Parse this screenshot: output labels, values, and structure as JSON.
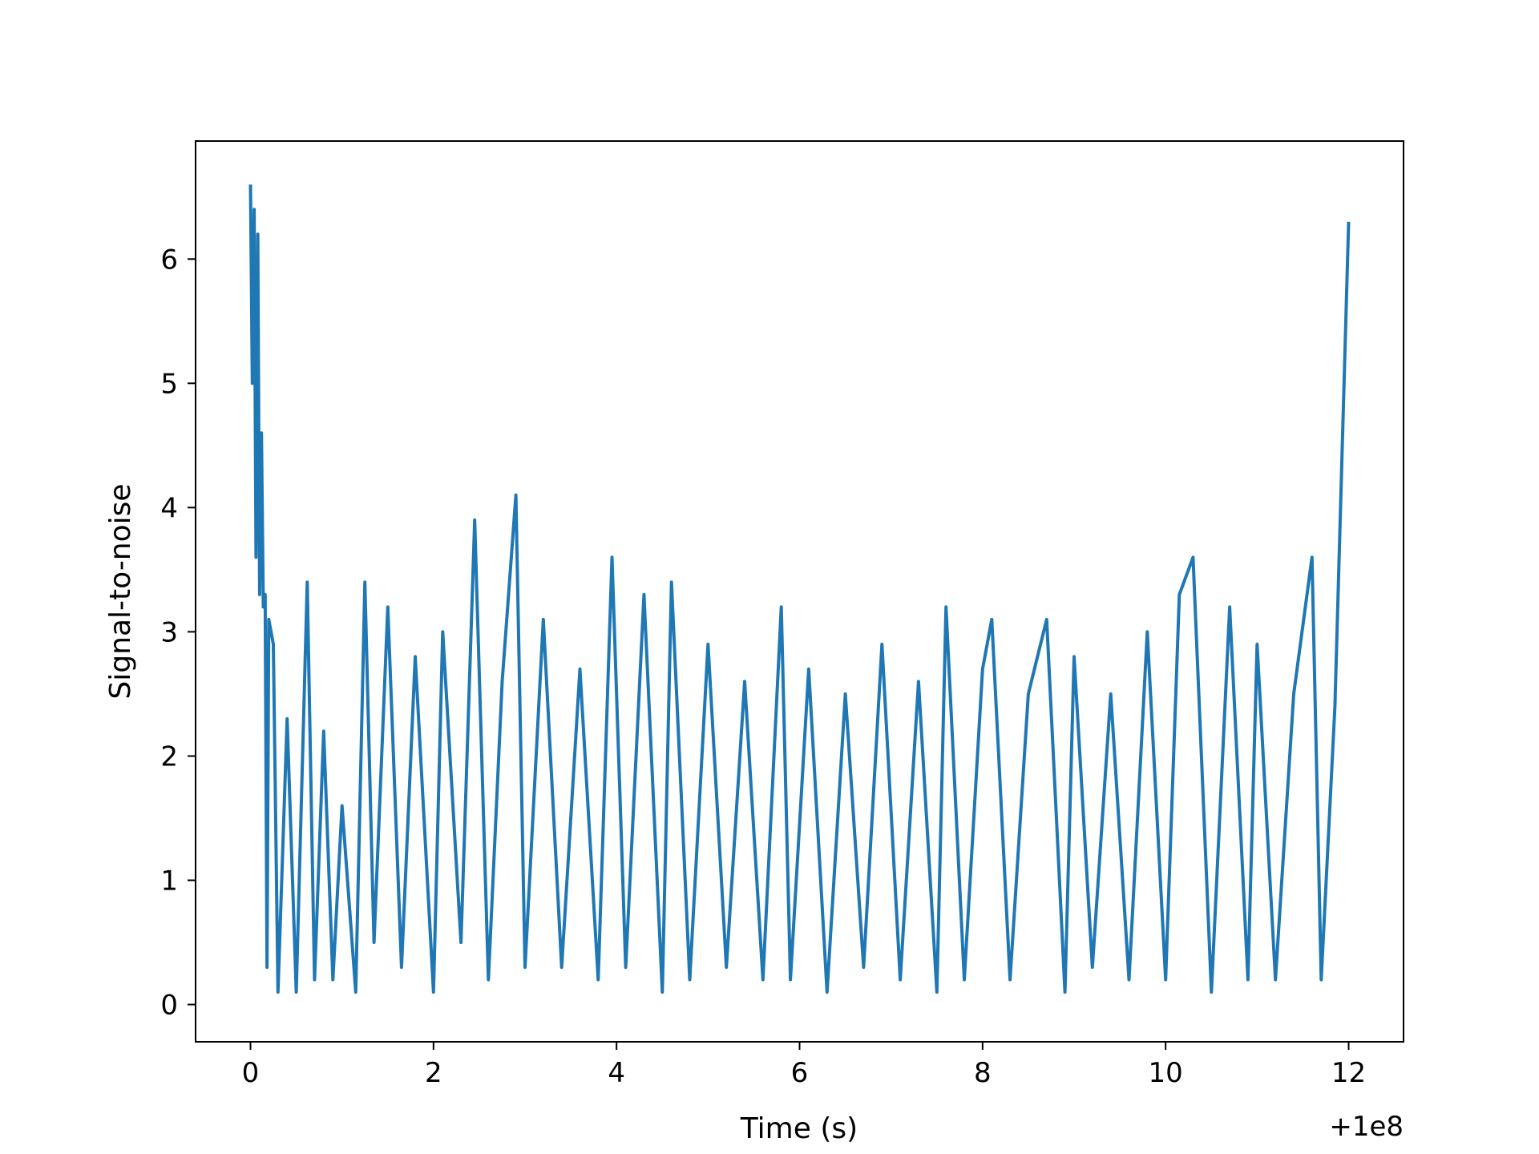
{
  "chart_data": {
    "type": "line",
    "title": "",
    "xlabel": "Time (s)",
    "ylabel": "Signal-to-noise",
    "x_offset_label": "+1e8",
    "xlim": [
      -0.6,
      12.6
    ],
    "ylim": [
      -0.3,
      6.95
    ],
    "x_ticks": [
      0,
      2,
      4,
      6,
      8,
      10,
      12
    ],
    "x_tick_labels": [
      "0",
      "2",
      "4",
      "6",
      "8",
      "10",
      "12"
    ],
    "y_ticks": [
      0,
      1,
      2,
      3,
      4,
      5,
      6
    ],
    "y_tick_labels": [
      "0",
      "1",
      "2",
      "3",
      "4",
      "5",
      "6"
    ],
    "grid": false,
    "line_color": "#1f77b4",
    "series": [
      {
        "x": [
          0,
          0.02,
          0.04,
          0.06,
          0.08,
          0.1,
          0.12,
          0.14,
          0.16,
          0.18,
          0.2,
          0.25,
          0.3,
          0.4,
          0.5,
          0.62,
          0.7,
          0.8,
          0.9,
          1.0,
          1.15,
          1.25,
          1.35,
          1.5,
          1.65,
          1.8,
          2.0,
          2.1,
          2.3,
          2.45,
          2.6,
          2.75,
          2.9,
          3.0,
          3.2,
          3.4,
          3.6,
          3.8,
          3.95,
          4.1,
          4.3,
          4.5,
          4.6,
          4.8,
          5.0,
          5.2,
          5.4,
          5.6,
          5.8,
          5.9,
          6.1,
          6.3,
          6.5,
          6.7,
          6.9,
          7.1,
          7.3,
          7.5,
          7.6,
          7.8,
          8.0,
          8.1,
          8.3,
          8.5,
          8.7,
          8.9,
          9.0,
          9.2,
          9.4,
          9.6,
          9.8,
          10.0,
          10.15,
          10.3,
          10.5,
          10.7,
          10.9,
          11.0,
          11.2,
          11.4,
          11.6,
          11.7,
          11.85,
          12.0
        ],
        "y": [
          6.6,
          5.0,
          6.4,
          3.6,
          6.2,
          3.3,
          4.6,
          3.2,
          3.3,
          0.3,
          3.1,
          2.9,
          0.1,
          2.3,
          0.1,
          3.4,
          0.2,
          2.2,
          0.2,
          1.6,
          0.1,
          3.4,
          0.5,
          3.2,
          0.3,
          2.8,
          0.1,
          3.0,
          0.5,
          3.9,
          0.2,
          2.6,
          4.1,
          0.3,
          3.1,
          0.3,
          2.7,
          0.2,
          3.6,
          0.3,
          3.3,
          0.1,
          3.4,
          0.2,
          2.9,
          0.3,
          2.6,
          0.2,
          3.2,
          0.2,
          2.7,
          0.1,
          2.5,
          0.3,
          2.9,
          0.2,
          2.6,
          0.1,
          3.2,
          0.2,
          2.7,
          3.1,
          0.2,
          2.5,
          3.1,
          0.1,
          2.8,
          0.3,
          2.5,
          0.2,
          3.0,
          0.2,
          3.3,
          3.6,
          0.1,
          3.2,
          0.2,
          2.9,
          0.2,
          2.5,
          3.6,
          0.2,
          2.4,
          6.3
        ]
      }
    ]
  }
}
